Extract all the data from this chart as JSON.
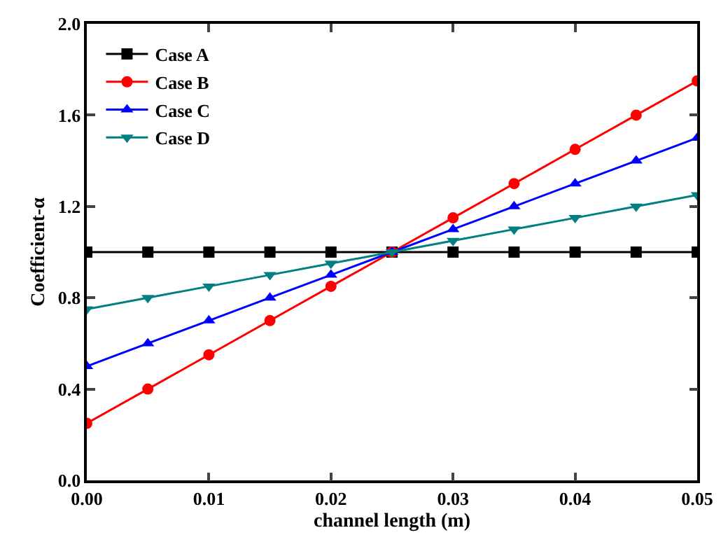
{
  "chart_data": {
    "type": "line",
    "xlabel": "channel length (m)",
    "ylabel": "Coefficient-α",
    "x": [
      0,
      0.005,
      0.01,
      0.015,
      0.02,
      0.025,
      0.03,
      0.035,
      0.04,
      0.045,
      0.05
    ],
    "series": [
      {
        "name": "Case A",
        "color": "#000000",
        "marker": "square",
        "values": [
          1,
          1,
          1,
          1,
          1,
          1,
          1,
          1,
          1,
          1,
          1
        ]
      },
      {
        "name": "Case B",
        "color": "#ff0000",
        "marker": "circle",
        "values": [
          0.25,
          0.4,
          0.55,
          0.7,
          0.85,
          1.0,
          1.15,
          1.3,
          1.45,
          1.6,
          1.75
        ]
      },
      {
        "name": "Case C",
        "color": "#0000ff",
        "marker": "triangle",
        "values": [
          0.5,
          0.6,
          0.7,
          0.8,
          0.9,
          1.0,
          1.1,
          1.2,
          1.3,
          1.4,
          1.5
        ]
      },
      {
        "name": "Case D",
        "color": "#008080",
        "marker": "triangle-down",
        "values": [
          0.75,
          0.8,
          0.85,
          0.9,
          0.95,
          1.0,
          1.05,
          1.1,
          1.15,
          1.2,
          1.25
        ]
      }
    ],
    "xlim": [
      0,
      0.05
    ],
    "xticks": [
      {
        "value": 0,
        "label": "0.00"
      },
      {
        "value": 0.01,
        "label": "0.01"
      },
      {
        "value": 0.02,
        "label": "0.02"
      },
      {
        "value": 0.03,
        "label": "0.03"
      },
      {
        "value": 0.04,
        "label": "0.04"
      },
      {
        "value": 0.05,
        "label": "0.05"
      }
    ],
    "ylim": [
      0,
      2
    ],
    "yticks": [
      {
        "value": 0,
        "label": "0.0"
      },
      {
        "value": 0.4,
        "label": "0.4"
      },
      {
        "value": 0.8,
        "label": "0.8"
      },
      {
        "value": 1.2,
        "label": "1.2"
      },
      {
        "value": 1.6,
        "label": "1.6"
      },
      {
        "value": 2,
        "label": "2.0"
      }
    ],
    "legend": "top left",
    "line_style": "solid"
  }
}
